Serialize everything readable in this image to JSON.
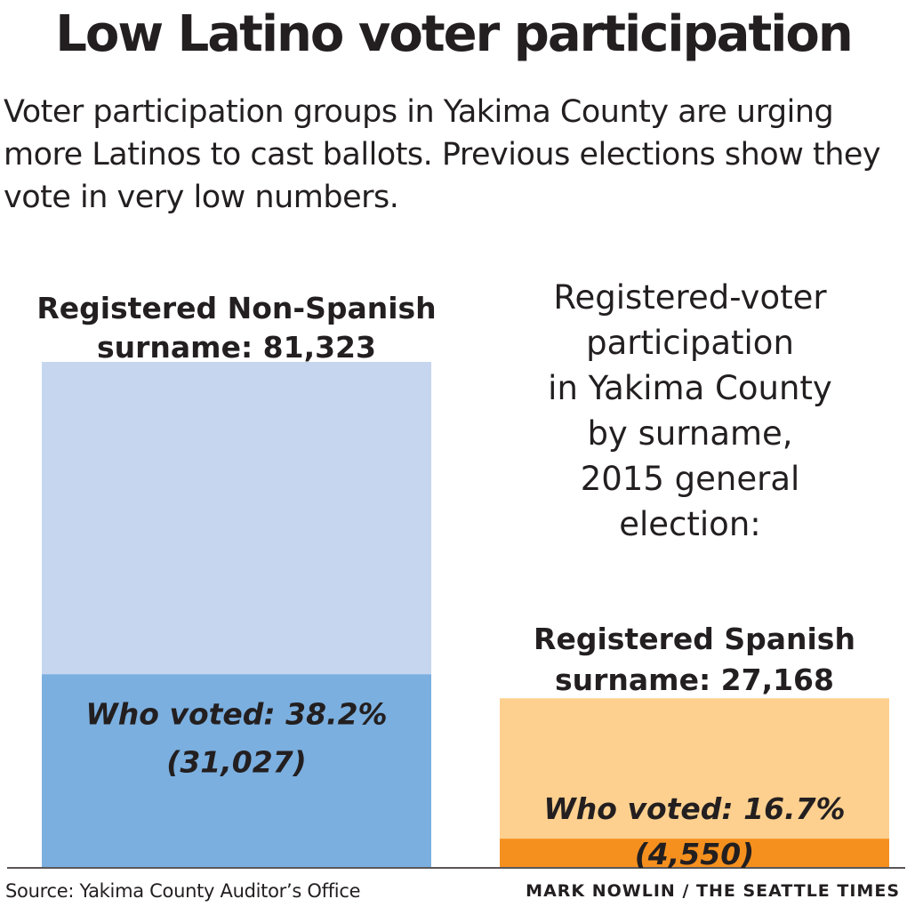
{
  "title": "Low Latino voter participation",
  "subtitle": "Voter participation groups in Yakima County are urging more Latinos to cast ballots. Previous elections show they vote in very low numbers.",
  "chart_data": {
    "type": "bar",
    "chart_label": [
      "Registered-voter",
      "participation",
      "in Yakima County",
      "by surname,",
      "2015 general",
      "election:"
    ],
    "categories": [
      "Non-Spanish surname",
      "Spanish surname"
    ],
    "series": [
      {
        "key": "registered",
        "label_lines": [
          [
            {
              "t": "Registered Non-Spanish",
              "b": true
            }
          ],
          [
            {
              "t": "surname: ",
              "b": true
            },
            {
              "t": "81,323",
              "b": true,
              "heavy": true
            }
          ]
        ],
        "spanish_label_lines": [
          [
            {
              "t": "Registered Spanish",
              "b": true
            }
          ],
          [
            {
              "t": "surname: ",
              "b": true
            },
            {
              "t": "27,168",
              "b": true,
              "heavy": true
            }
          ]
        ],
        "values": [
          81323,
          27168
        ],
        "colors": [
          "#c6d6ee",
          "#fdd08f"
        ]
      },
      {
        "key": "voted",
        "label_lines_0": [
          "Who voted: 38.2%",
          "(31,027)"
        ],
        "label_lines_1": [
          "Who voted: 16.7%",
          "(4,550)"
        ],
        "values": [
          31027,
          4550
        ],
        "percent": [
          38.2,
          16.7
        ],
        "colors": [
          "#7bafdf",
          "#f5901e"
        ]
      }
    ],
    "ylim": [
      0,
      81323
    ]
  },
  "footer": {
    "source": "Source: Yakima County Auditor’s Office",
    "credit": "MARK NOWLIN / THE SEATTLE TIMES"
  }
}
